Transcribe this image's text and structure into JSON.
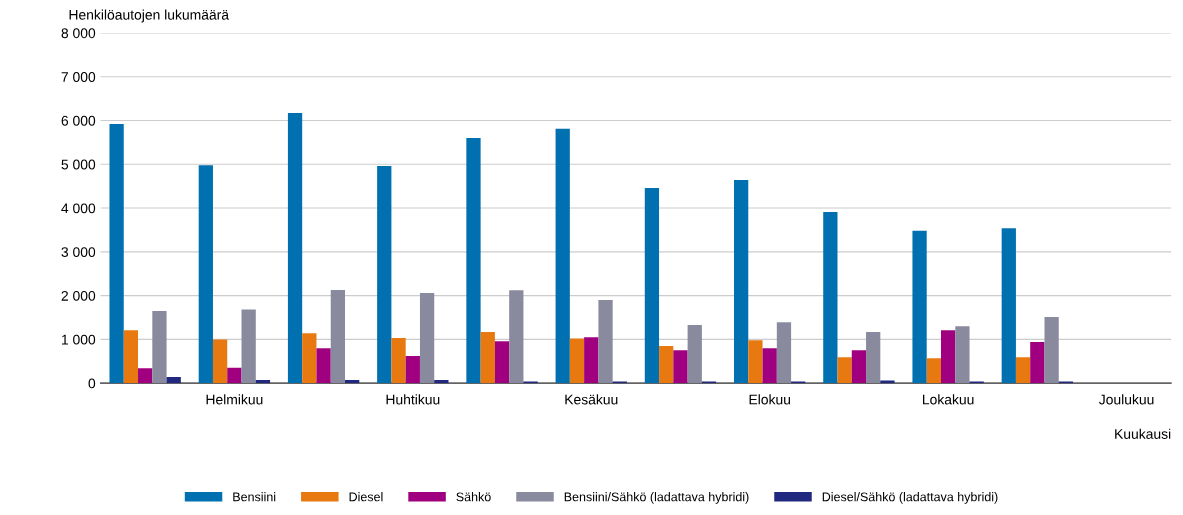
{
  "chart_data": {
    "type": "bar",
    "ylabel": "Henkilöautojen lukumäärä",
    "xlabel": "Kuukausi",
    "categories": [
      null,
      "Helmikuu",
      null,
      "Huhtikuu",
      null,
      "Kesäkuu",
      null,
      "Elokuu",
      null,
      "Lokakuu",
      null,
      "Joulukuu"
    ],
    "series": [
      {
        "name": "Bensiini",
        "color": "#0070b0",
        "values": [
          5920,
          4980,
          6170,
          4960,
          5600,
          5810,
          4460,
          4640,
          3910,
          3480,
          3540,
          null
        ]
      },
      {
        "name": "Diesel",
        "color": "#e87810",
        "values": [
          1210,
          1000,
          1140,
          1030,
          1170,
          1020,
          850,
          980,
          590,
          570,
          590,
          null
        ]
      },
      {
        "name": "Sähkö",
        "color": "#a0007f",
        "values": [
          340,
          350,
          800,
          620,
          960,
          1050,
          750,
          800,
          750,
          1210,
          940,
          null
        ]
      },
      {
        "name": "Bensiini/Sähkö (ladattava hybridi)",
        "color": "#8a8a9e",
        "values": [
          1650,
          1680,
          2130,
          2060,
          2120,
          1900,
          1330,
          1390,
          1170,
          1300,
          1510,
          null
        ]
      },
      {
        "name": "Diesel/Sähkö (ladattava hybridi)",
        "color": "#202880",
        "values": [
          140,
          70,
          70,
          70,
          40,
          40,
          40,
          40,
          60,
          40,
          40,
          null
        ]
      }
    ],
    "ylim": [
      0,
      8000
    ],
    "yticks": [
      0,
      {
        "value": 1000,
        "label": "1 000"
      },
      {
        "value": 2000,
        "label": "2 000"
      },
      {
        "value": 3000,
        "label": "3 000"
      },
      {
        "value": 4000,
        "label": "4 000"
      },
      {
        "value": 5000,
        "label": "5 000"
      },
      {
        "value": 6000,
        "label": "6 000"
      },
      {
        "value": 7000,
        "label": "7 000"
      },
      {
        "value": 8000,
        "label": "8 000"
      }
    ],
    "grid": "y",
    "legend": "bottom"
  }
}
